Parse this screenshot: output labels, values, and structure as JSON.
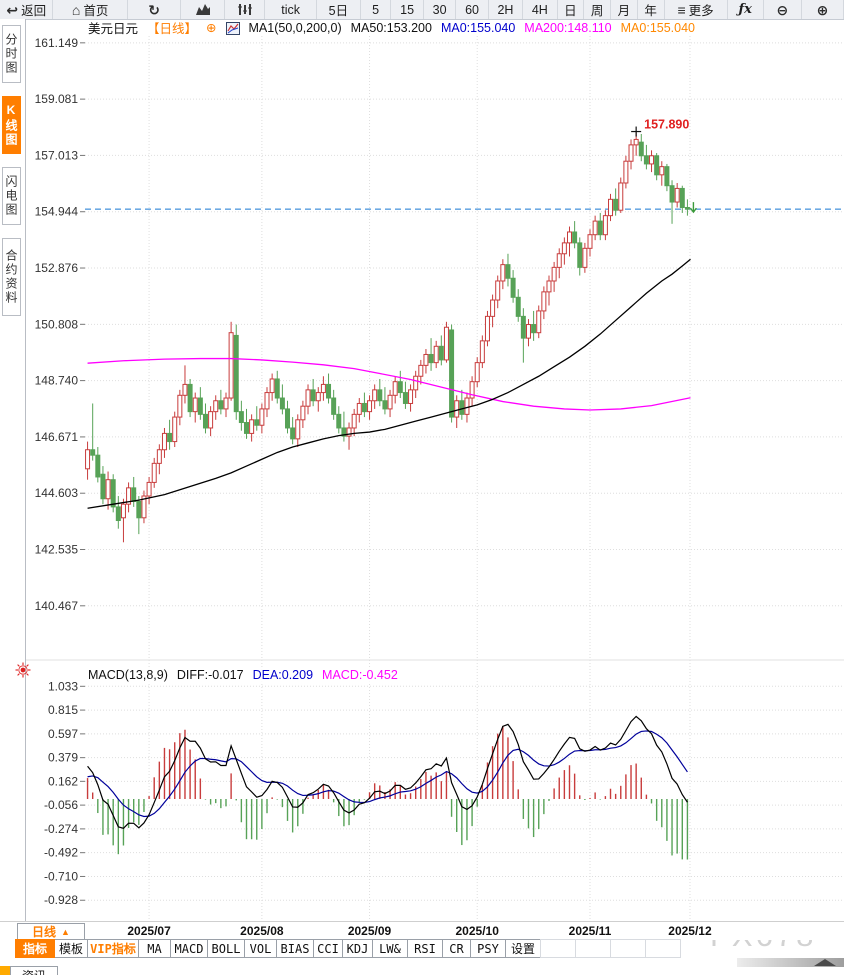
{
  "toolbar": {
    "items": [
      {
        "name": "back-button",
        "glyph": "↩",
        "label": "返回"
      },
      {
        "name": "home-button",
        "glyph": "⌂",
        "label": "首页"
      },
      {
        "name": "refresh-button",
        "glyph": "↻",
        "label": ""
      },
      {
        "name": "area-chart-button",
        "svg": "area",
        "label": ""
      },
      {
        "name": "candlestick-chart-button",
        "svg": "candles",
        "label": ""
      },
      {
        "name": "period-tick-button",
        "label": "tick"
      },
      {
        "name": "period-5d-button",
        "label": "5日"
      },
      {
        "name": "period-5m-button",
        "label": "5"
      },
      {
        "name": "period-15m-button",
        "label": "15"
      },
      {
        "name": "period-30m-button",
        "label": "30"
      },
      {
        "name": "period-60m-button",
        "label": "60"
      },
      {
        "name": "period-2h-button",
        "label": "2H"
      },
      {
        "name": "period-4h-button",
        "label": "4H"
      },
      {
        "name": "period-day-button",
        "label": "日"
      },
      {
        "name": "period-week-button",
        "label": "周"
      },
      {
        "name": "period-month-button",
        "label": "月"
      },
      {
        "name": "period-year-button",
        "label": "年"
      },
      {
        "name": "more-menu-button",
        "glyph": "≡",
        "label": "更多"
      },
      {
        "name": "fx-indicator-button",
        "fx": true,
        "label": "ƒx"
      },
      {
        "name": "zoom-out-button",
        "glyph": "⊖",
        "label": ""
      },
      {
        "name": "zoom-in-button",
        "glyph": "⊕",
        "label": ""
      }
    ]
  },
  "sidebar": {
    "items": [
      {
        "label": "分时图",
        "active": false
      },
      {
        "label": "K线图",
        "active": true
      },
      {
        "label": "闪电图",
        "active": false
      },
      {
        "label": "合约资料",
        "active": false
      }
    ]
  },
  "chart_header": {
    "symbol": "美元日元",
    "period": "【日线】",
    "plus_icon": "⊕",
    "ma_settings": "MA1(50,0,200,0)",
    "ma50": "MA50:153.200",
    "ma0_blue": "MA0:155.040",
    "ma200": "MA200:148.110",
    "ma0_orange": "MA0:155.040"
  },
  "macd_header": {
    "title": "MACD(13,8,9)",
    "diff": "DIFF:-0.017",
    "dea": "DEA:0.209",
    "macd": "MACD:-0.452"
  },
  "footer": {
    "period_selector": "日线",
    "period_selector_arrow": "▲",
    "watermark": "FX678",
    "news_tab": "资讯",
    "tabs": [
      {
        "label": "指标",
        "style": "active"
      },
      {
        "label": "模板",
        "style": ""
      },
      {
        "label": "VIP指标",
        "style": "vip"
      },
      {
        "label": "MA",
        "style": ""
      },
      {
        "label": "MACD",
        "style": ""
      },
      {
        "label": "BOLL",
        "style": ""
      },
      {
        "label": "VOL",
        "style": ""
      },
      {
        "label": "BIAS",
        "style": ""
      },
      {
        "label": "CCI",
        "style": ""
      },
      {
        "label": "KDJ",
        "style": ""
      },
      {
        "label": "LW&",
        "style": ""
      },
      {
        "label": "RSI",
        "style": ""
      },
      {
        "label": "CR",
        "style": ""
      },
      {
        "label": "PSY",
        "style": ""
      },
      {
        "label": "设置",
        "style": ""
      },
      {
        "label": "",
        "style": "empty"
      },
      {
        "label": "",
        "style": "empty"
      },
      {
        "label": "",
        "style": "empty"
      },
      {
        "label": "",
        "style": "empty"
      }
    ]
  },
  "colors": {
    "up": "#c83c3c",
    "down": "#57a257",
    "ma50": "#000000",
    "ma200": "#ff00ff",
    "price_line": "#1777d2",
    "diff_line": "#000000",
    "dea_line": "#00009b",
    "hist_up": "#c83c3c",
    "hist_down": "#57a257",
    "grid": "#dedede",
    "axis_text": "#333333",
    "annotation": "#e02020",
    "accent_orange": "#ff7e00",
    "live_red": "#dd2020",
    "marker_green": "#3a9a3a"
  },
  "chart_data": {
    "type": "candlestick",
    "title": "美元日元 日线 (USD/JPY daily)",
    "x_axis": {
      "labels": [
        "2025/07",
        "2025/08",
        "2025/09",
        "2025/10",
        "2025/11",
        "2025/12"
      ],
      "tick_indices": [
        12,
        34,
        55,
        76,
        98,
        117.5
      ]
    },
    "main_panel": {
      "y_ticks": [
        161.149,
        159.081,
        157.013,
        154.944,
        152.876,
        150.808,
        148.74,
        146.671,
        144.603,
        142.535,
        140.467
      ],
      "value_top": 161.4,
      "value_bottom": 140.17,
      "last_price_line": 155.04,
      "high_annotation": {
        "index": 107,
        "value": 157.89,
        "text": "157.890"
      },
      "last_marker_index": 117,
      "candles": [
        [
          145.5,
          146.5,
          145.1,
          146.2
        ],
        [
          146.2,
          147.9,
          145.8,
          146.0
        ],
        [
          146.0,
          146.3,
          145.0,
          145.2
        ],
        [
          145.3,
          145.6,
          144.2,
          144.4
        ],
        [
          144.4,
          145.4,
          144.0,
          145.1
        ],
        [
          145.1,
          145.3,
          143.9,
          144.1
        ],
        [
          144.1,
          144.5,
          143.3,
          143.6
        ],
        [
          143.7,
          144.4,
          142.8,
          144.2
        ],
        [
          144.2,
          145.0,
          143.9,
          144.8
        ],
        [
          144.8,
          145.2,
          144.1,
          144.3
        ],
        [
          144.3,
          144.5,
          143.1,
          143.7
        ],
        [
          143.7,
          144.7,
          143.5,
          144.5
        ],
        [
          144.5,
          145.2,
          144.2,
          145.0
        ],
        [
          145.0,
          145.9,
          144.8,
          145.7
        ],
        [
          145.7,
          146.4,
          145.3,
          146.2
        ],
        [
          146.2,
          147.0,
          145.9,
          146.8
        ],
        [
          146.8,
          147.3,
          146.2,
          146.5
        ],
        [
          146.5,
          147.6,
          146.3,
          147.4
        ],
        [
          147.4,
          148.4,
          147.1,
          148.2
        ],
        [
          148.2,
          149.3,
          147.9,
          148.6
        ],
        [
          148.6,
          148.8,
          147.4,
          147.6
        ],
        [
          147.6,
          148.3,
          147.2,
          148.1
        ],
        [
          148.1,
          148.5,
          147.3,
          147.5
        ],
        [
          147.5,
          147.9,
          146.8,
          147.0
        ],
        [
          147.0,
          147.8,
          146.7,
          147.6
        ],
        [
          147.6,
          148.2,
          147.3,
          148.0
        ],
        [
          148.0,
          148.4,
          147.5,
          147.7
        ],
        [
          147.7,
          148.3,
          147.4,
          148.1
        ],
        [
          148.1,
          150.9,
          148.0,
          150.5
        ],
        [
          150.4,
          150.8,
          147.3,
          147.6
        ],
        [
          147.6,
          148.0,
          146.9,
          147.2
        ],
        [
          147.2,
          147.7,
          146.6,
          146.8
        ],
        [
          146.8,
          147.5,
          146.5,
          147.3
        ],
        [
          147.3,
          147.8,
          146.9,
          147.1
        ],
        [
          147.1,
          147.9,
          146.8,
          147.7
        ],
        [
          147.7,
          148.5,
          147.4,
          148.3
        ],
        [
          148.3,
          149.0,
          148.0,
          148.8
        ],
        [
          148.8,
          149.1,
          147.9,
          148.1
        ],
        [
          148.1,
          148.6,
          147.5,
          147.7
        ],
        [
          147.7,
          148.0,
          146.8,
          147.0
        ],
        [
          147.0,
          147.4,
          146.4,
          146.6
        ],
        [
          146.6,
          147.5,
          146.3,
          147.3
        ],
        [
          147.3,
          148.0,
          147.0,
          147.8
        ],
        [
          147.8,
          148.6,
          147.5,
          148.4
        ],
        [
          148.4,
          148.8,
          147.8,
          148.0
        ],
        [
          148.0,
          148.5,
          147.6,
          148.3
        ],
        [
          148.3,
          148.9,
          148.0,
          148.6
        ],
        [
          148.6,
          149.0,
          147.9,
          148.1
        ],
        [
          148.1,
          148.4,
          147.3,
          147.5
        ],
        [
          147.5,
          147.8,
          146.8,
          147.0
        ],
        [
          147.0,
          147.6,
          146.5,
          146.7
        ],
        [
          146.7,
          147.2,
          146.2,
          147.0
        ],
        [
          147.0,
          147.7,
          146.7,
          147.5
        ],
        [
          147.5,
          148.1,
          147.2,
          147.9
        ],
        [
          147.9,
          148.3,
          147.4,
          147.6
        ],
        [
          147.6,
          148.2,
          147.3,
          148.0
        ],
        [
          148.0,
          148.6,
          147.7,
          148.4
        ],
        [
          148.4,
          148.8,
          147.8,
          148.0
        ],
        [
          148.0,
          148.5,
          147.5,
          147.7
        ],
        [
          147.7,
          148.4,
          147.4,
          148.2
        ],
        [
          148.2,
          148.9,
          147.9,
          148.7
        ],
        [
          148.7,
          149.1,
          148.1,
          148.3
        ],
        [
          148.3,
          148.7,
          147.7,
          147.9
        ],
        [
          147.9,
          148.6,
          147.6,
          148.4
        ],
        [
          148.4,
          149.1,
          148.1,
          148.9
        ],
        [
          148.9,
          149.5,
          148.6,
          149.3
        ],
        [
          149.3,
          149.9,
          149.0,
          149.7
        ],
        [
          149.7,
          150.3,
          149.1,
          149.4
        ],
        [
          149.4,
          150.2,
          149.2,
          150.0
        ],
        [
          150.0,
          150.4,
          149.3,
          149.5
        ],
        [
          149.5,
          150.9,
          149.4,
          150.7
        ],
        [
          150.6,
          150.8,
          147.2,
          147.4
        ],
        [
          147.4,
          148.2,
          147.0,
          148.0
        ],
        [
          148.0,
          148.4,
          147.3,
          147.5
        ],
        [
          147.5,
          148.3,
          147.2,
          148.1
        ],
        [
          148.1,
          148.9,
          147.8,
          148.7
        ],
        [
          148.7,
          149.6,
          148.5,
          149.4
        ],
        [
          149.4,
          150.4,
          149.2,
          150.2
        ],
        [
          150.2,
          151.3,
          150.0,
          151.1
        ],
        [
          151.1,
          151.9,
          150.7,
          151.7
        ],
        [
          151.7,
          152.6,
          151.4,
          152.4
        ],
        [
          152.4,
          153.2,
          152.1,
          153.0
        ],
        [
          153.0,
          153.4,
          152.2,
          152.5
        ],
        [
          152.5,
          152.8,
          151.6,
          151.8
        ],
        [
          151.8,
          152.1,
          150.9,
          151.1
        ],
        [
          151.1,
          151.4,
          149.4,
          150.3
        ],
        [
          150.3,
          151.0,
          150.0,
          150.8
        ],
        [
          150.8,
          151.3,
          150.2,
          150.5
        ],
        [
          150.5,
          151.5,
          150.3,
          151.3
        ],
        [
          151.3,
          152.2,
          151.0,
          152.0
        ],
        [
          152.0,
          152.6,
          151.5,
          152.4
        ],
        [
          152.4,
          153.1,
          152.0,
          152.9
        ],
        [
          152.9,
          153.6,
          152.5,
          153.4
        ],
        [
          153.4,
          154.0,
          153.0,
          153.8
        ],
        [
          153.8,
          154.4,
          153.3,
          154.2
        ],
        [
          154.2,
          154.6,
          153.6,
          153.8
        ],
        [
          153.8,
          154.0,
          152.6,
          152.9
        ],
        [
          152.9,
          153.8,
          152.7,
          153.6
        ],
        [
          153.6,
          154.3,
          153.3,
          154.1
        ],
        [
          154.1,
          154.8,
          153.9,
          154.6
        ],
        [
          154.6,
          154.9,
          153.9,
          154.1
        ],
        [
          154.1,
          155.0,
          153.9,
          154.8
        ],
        [
          154.8,
          155.6,
          154.6,
          155.4
        ],
        [
          155.4,
          155.8,
          154.8,
          155.0
        ],
        [
          155.0,
          156.2,
          154.9,
          156.0
        ],
        [
          156.0,
          157.0,
          155.8,
          156.8
        ],
        [
          156.8,
          157.6,
          156.5,
          157.4
        ],
        [
          157.4,
          157.89,
          157.0,
          157.6
        ],
        [
          157.5,
          157.8,
          156.8,
          157.0
        ],
        [
          157.0,
          157.4,
          156.5,
          156.7
        ],
        [
          156.7,
          157.2,
          156.4,
          157.0
        ],
        [
          157.0,
          157.1,
          156.1,
          156.3
        ],
        [
          156.3,
          156.8,
          155.9,
          156.6
        ],
        [
          156.6,
          156.7,
          155.7,
          155.9
        ],
        [
          155.9,
          156.1,
          154.5,
          155.3
        ],
        [
          155.3,
          156.0,
          155.1,
          155.8
        ],
        [
          155.8,
          155.9,
          154.9,
          155.1
        ],
        [
          155.1,
          155.4,
          154.8,
          155.04
        ]
      ],
      "ma50_points": [
        [
          0,
          144.05
        ],
        [
          5,
          144.2
        ],
        [
          10,
          144.35
        ],
        [
          15,
          144.55
        ],
        [
          20,
          144.85
        ],
        [
          25,
          145.15
        ],
        [
          28,
          145.35
        ],
        [
          31,
          145.6
        ],
        [
          34,
          145.85
        ],
        [
          37,
          146.1
        ],
        [
          40,
          146.3
        ],
        [
          43,
          146.45
        ],
        [
          46,
          146.6
        ],
        [
          49,
          146.72
        ],
        [
          52,
          146.8
        ],
        [
          55,
          146.85
        ],
        [
          58,
          146.95
        ],
        [
          61,
          147.1
        ],
        [
          64,
          147.25
        ],
        [
          67,
          147.4
        ],
        [
          70,
          147.55
        ],
        [
          73,
          147.7
        ],
        [
          76,
          147.85
        ],
        [
          79,
          148.05
        ],
        [
          82,
          148.3
        ],
        [
          85,
          148.6
        ],
        [
          88,
          148.9
        ],
        [
          91,
          149.25
        ],
        [
          94,
          149.6
        ],
        [
          97,
          150.0
        ],
        [
          100,
          150.45
        ],
        [
          103,
          150.95
        ],
        [
          106,
          151.45
        ],
        [
          109,
          151.95
        ],
        [
          112,
          152.4
        ],
        [
          114,
          152.65
        ],
        [
          116,
          152.95
        ],
        [
          117.6,
          153.2
        ]
      ],
      "ma200_points": [
        [
          0,
          149.38
        ],
        [
          7,
          149.47
        ],
        [
          15,
          149.53
        ],
        [
          22,
          149.55
        ],
        [
          28,
          149.55
        ],
        [
          34,
          149.5
        ],
        [
          40,
          149.42
        ],
        [
          46,
          149.32
        ],
        [
          52,
          149.18
        ],
        [
          57,
          149.0
        ],
        [
          63,
          148.78
        ],
        [
          69,
          148.5
        ],
        [
          75,
          148.22
        ],
        [
          81,
          147.97
        ],
        [
          87,
          147.8
        ],
        [
          93,
          147.7
        ],
        [
          98,
          147.66
        ],
        [
          104,
          147.7
        ],
        [
          110,
          147.82
        ],
        [
          117.6,
          148.11
        ]
      ]
    },
    "macd_panel": {
      "params": {
        "short": 8,
        "long": 13,
        "signal": 9,
        "seed_diff": 0.35,
        "seed_dea": 0.18
      },
      "y_ticks": [
        1.033,
        0.815,
        0.597,
        0.379,
        0.162,
        -0.056,
        -0.274,
        -0.492,
        -0.71,
        -0.928
      ],
      "last_values": {
        "diff": -0.017,
        "dea": 0.209,
        "macd": -0.452
      }
    }
  }
}
